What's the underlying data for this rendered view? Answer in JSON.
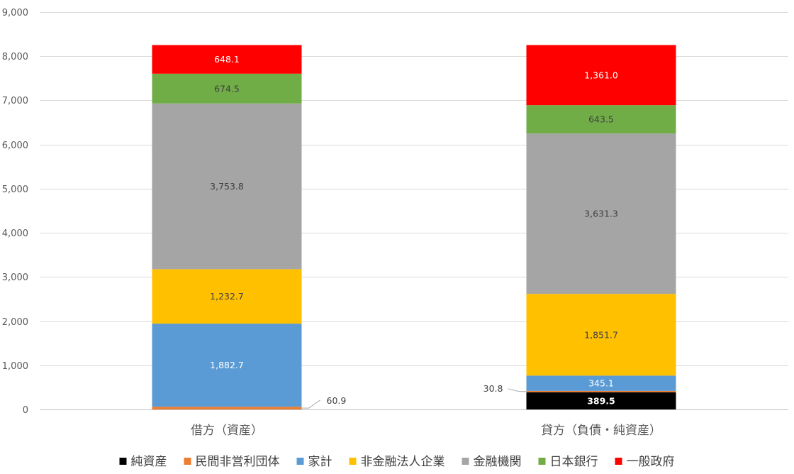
{
  "chart_data": {
    "type": "bar",
    "stacked": true,
    "categories": [
      "借方（資産）",
      "貸方（負債・純資産）"
    ],
    "series": [
      {
        "name": "純資産",
        "color": "#000000",
        "values": [
          0,
          389.5
        ],
        "label_texts": [
          "",
          "389.5"
        ],
        "label_color": "#ffffff",
        "label_bold": true
      },
      {
        "name": "民間非営利団体",
        "color": "#ed7d31",
        "values": [
          60.9,
          30.8
        ],
        "label_texts": [
          "60.9",
          "30.8"
        ],
        "label_color": "#404040",
        "label_external": true
      },
      {
        "name": "家計",
        "color": "#5b9bd5",
        "values": [
          1882.7,
          345.1
        ],
        "label_texts": [
          "1,882.7",
          "345.1"
        ],
        "label_color": "#ffffff"
      },
      {
        "name": "非金融法人企業",
        "color": "#ffc000",
        "values": [
          1232.7,
          1851.7
        ],
        "label_texts": [
          "1,232.7",
          "1,851.7"
        ],
        "label_color": "#404040"
      },
      {
        "name": "金融機関",
        "color": "#a5a5a5",
        "values": [
          3753.8,
          3631.3
        ],
        "label_texts": [
          "3,753.8",
          "3,631.3"
        ],
        "label_color": "#404040"
      },
      {
        "name": "日本銀行",
        "color": "#70ad47",
        "values": [
          674.5,
          643.5
        ],
        "label_texts": [
          "674.5",
          "643.5"
        ],
        "label_color": "#404040"
      },
      {
        "name": "一般政府",
        "color": "#ff0000",
        "values": [
          648.1,
          1361.0
        ],
        "label_texts": [
          "648.1",
          "1,361.0"
        ],
        "label_color": "#ffffff"
      }
    ],
    "ylim": [
      0,
      9000
    ],
    "yticks": [
      0,
      1000,
      2000,
      3000,
      4000,
      5000,
      6000,
      7000,
      8000,
      9000
    ],
    "ytick_labels": [
      "0",
      "1,000",
      "2,000",
      "3,000",
      "4,000",
      "5,000",
      "6,000",
      "7,000",
      "8,000",
      "9,000"
    ],
    "grid": true,
    "legend": "bottom",
    "title": "",
    "xlabel": "",
    "ylabel": ""
  }
}
